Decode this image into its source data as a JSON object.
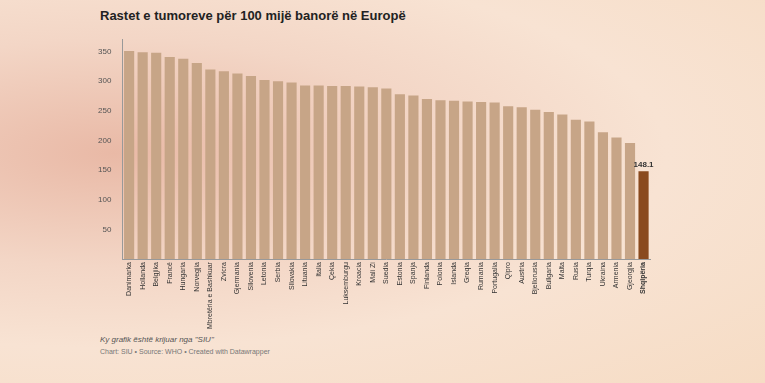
{
  "chart_data": {
    "type": "bar",
    "title": "Rastet e tumoreve për 100 mijë banorë në Europë",
    "categories": [
      "Danimarka",
      "Hollanda",
      "Belgjika",
      "Francë",
      "Hungaria",
      "Norvegjia",
      "Mbretëria e Bashkuar",
      "Zvicra",
      "Gjermania",
      "Sllovenia",
      "Letonia",
      "Serbia",
      "Sllovakia",
      "Lituania",
      "Italia",
      "Çekia",
      "Luksemburgu",
      "Kroacia",
      "Mali Zi",
      "Suedia",
      "Estonia",
      "Spanja",
      "Finlanda",
      "Polonia",
      "Islanda",
      "Greqia",
      "Rumania",
      "Portugalia",
      "Qipro",
      "Austria",
      "Bjellorusia",
      "Bullgaria",
      "Malta",
      "Rusia",
      "Turqia",
      "Ukraina",
      "Armenia",
      "Gjeorgjia",
      "Shqipëria"
    ],
    "values": [
      351,
      349,
      348,
      341,
      338,
      331,
      320,
      317,
      313,
      309,
      302,
      300,
      298,
      293,
      293,
      292,
      292,
      291,
      290,
      288,
      278,
      276,
      270,
      268,
      267,
      266,
      265,
      264,
      258,
      256,
      252,
      248,
      244,
      235,
      232,
      214,
      205,
      196,
      148.1
    ],
    "colors": [
      "#c7a587",
      "#c7a587",
      "#c7a587",
      "#c7a587",
      "#c7a587",
      "#c7a587",
      "#c7a587",
      "#c7a587",
      "#c7a587",
      "#c7a587",
      "#c7a587",
      "#c7a587",
      "#c7a587",
      "#c7a587",
      "#c7a587",
      "#c7a587",
      "#c7a587",
      "#c7a587",
      "#c7a587",
      "#c7a587",
      "#c7a587",
      "#c7a587",
      "#c7a587",
      "#c7a587",
      "#c7a587",
      "#c7a587",
      "#c7a587",
      "#c7a587",
      "#c7a587",
      "#c7a587",
      "#c7a587",
      "#c7a587",
      "#c7a587",
      "#c7a587",
      "#c7a587",
      "#c7a587",
      "#c7a587",
      "#c7a587",
      "#8a4a1e"
    ],
    "ylim": [
      0,
      370
    ],
    "yticks": [
      50,
      100,
      150,
      200,
      250,
      300,
      350
    ],
    "grid": false,
    "annotations": [
      {
        "category": "Shqipëria",
        "text": "148.1"
      }
    ],
    "caption": "Ky grafik është krijuar nga \"SIU\"",
    "source": "Chart: SIU • Source: WHO • Created with Datawrapper"
  }
}
